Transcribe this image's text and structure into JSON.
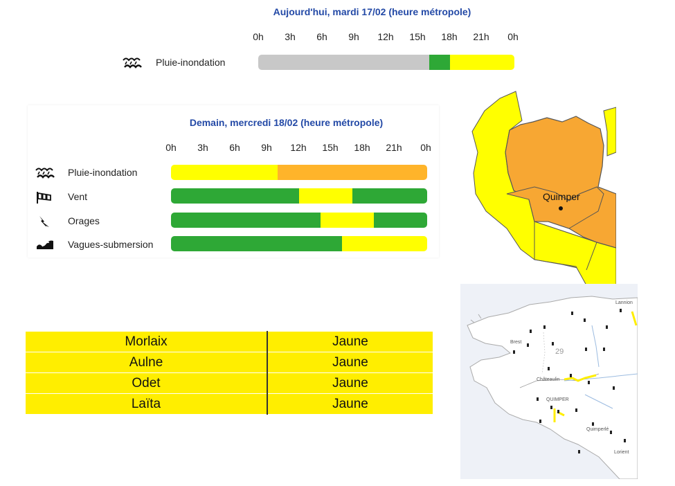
{
  "today": {
    "title": "Aujourd'hui, mardi 17/02 (heure métropole)",
    "hours": [
      "0h",
      "3h",
      "6h",
      "9h",
      "12h",
      "15h",
      "18h",
      "21h",
      "0h"
    ],
    "rows": [
      {
        "label": "Pluie-inondation",
        "icon": "rain-flood-icon",
        "segments": [
          {
            "color": "#c8c8c8",
            "span": 16
          },
          {
            "color": "#2ea836",
            "span": 2
          },
          {
            "color": "#ffff00",
            "span": 6
          }
        ]
      }
    ]
  },
  "tomorrow": {
    "title": "Demain, mercredi 18/02 (heure métropole)",
    "hours": [
      "0h",
      "3h",
      "6h",
      "9h",
      "12h",
      "15h",
      "18h",
      "21h",
      "0h"
    ],
    "rows": [
      {
        "label": "Pluie-inondation",
        "icon": "rain-flood-icon",
        "segments": [
          {
            "color": "#ffff00",
            "span": 10
          },
          {
            "color": "#ffb42a",
            "span": 14
          }
        ]
      },
      {
        "label": "Vent",
        "icon": "wind-icon",
        "segments": [
          {
            "color": "#2ea836",
            "span": 12
          },
          {
            "color": "#ffff00",
            "span": 5
          },
          {
            "color": "#2ea836",
            "span": 7
          }
        ]
      },
      {
        "label": "Orages",
        "icon": "lightning-icon",
        "segments": [
          {
            "color": "#2ea836",
            "span": 14
          },
          {
            "color": "#ffff00",
            "span": 5
          },
          {
            "color": "#2ea836",
            "span": 5
          }
        ]
      },
      {
        "label": "Vagues-submersion",
        "icon": "waves-icon",
        "segments": [
          {
            "color": "#2ea836",
            "span": 16
          },
          {
            "color": "#ffff00",
            "span": 8
          }
        ]
      }
    ]
  },
  "map": {
    "city_label": "Quimper",
    "colors": {
      "orange": "#f7a733",
      "yellow": "#ffff00",
      "border": "#555555"
    }
  },
  "rivers": [
    {
      "name": "Morlaix",
      "level": "Jaune"
    },
    {
      "name": "Aulne",
      "level": "Jaune"
    },
    {
      "name": "Odet",
      "level": "Jaune"
    },
    {
      "name": "Laïta",
      "level": "Jaune"
    }
  ],
  "vigicrues_map": {
    "labels": [
      "Brest",
      "29",
      "Châteaulin",
      "QUIMPER",
      "Quimperlé",
      "Lorient",
      "Lannion"
    ]
  }
}
